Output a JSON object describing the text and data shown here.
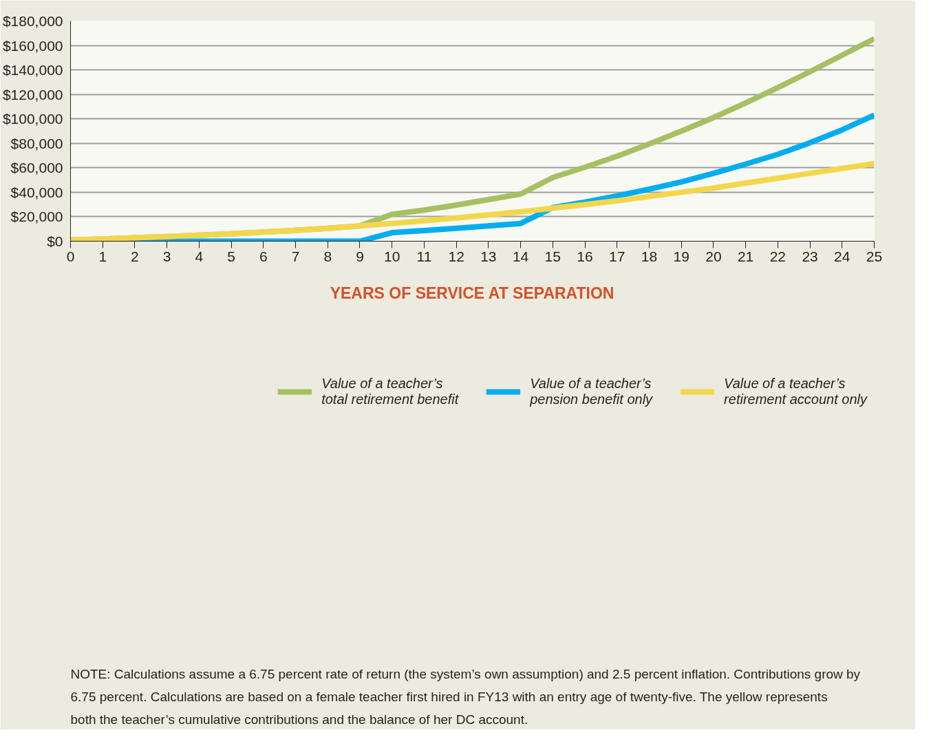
{
  "chart_data": {
    "type": "line",
    "x": [
      0,
      1,
      2,
      3,
      4,
      5,
      6,
      7,
      8,
      9,
      10,
      11,
      12,
      13,
      14,
      15,
      16,
      17,
      18,
      19,
      20,
      21,
      22,
      23,
      24,
      25
    ],
    "xlabel": "YEARS OF SERVICE AT SEPARATION",
    "xlim": [
      0,
      25
    ],
    "xticks": [
      0,
      1,
      2,
      3,
      4,
      5,
      6,
      7,
      8,
      9,
      10,
      11,
      12,
      13,
      14,
      15,
      16,
      17,
      18,
      19,
      20,
      21,
      22,
      23,
      24,
      25
    ],
    "ylim": [
      0,
      180000
    ],
    "yticks": [
      {
        "value": 0,
        "label": "$0"
      },
      {
        "value": 20000,
        "label": "$20,000"
      },
      {
        "value": 40000,
        "label": "$40,000"
      },
      {
        "value": 60000,
        "label": "$60,000"
      },
      {
        "value": 80000,
        "label": "$80,000"
      },
      {
        "value": 100000,
        "label": "$100,000"
      },
      {
        "value": 120000,
        "label": "$120,000"
      },
      {
        "value": 140000,
        "label": "$140,000"
      },
      {
        "value": 160000,
        "label": "$160,000"
      },
      {
        "value": 180000,
        "label": "$180,000"
      }
    ],
    "grid": "y",
    "legend": "bottom",
    "marker": "none",
    "line_style": "solid",
    "series": [
      {
        "name": "Value of a teacher’s total retirement benefit",
        "color": "#a6c063",
        "values": [
          1000,
          1800,
          2800,
          3800,
          4900,
          6100,
          7400,
          8800,
          10500,
          12500,
          22000,
          25500,
          29500,
          34000,
          38500,
          52000,
          60500,
          69500,
          79500,
          90000,
          101000,
          113000,
          125500,
          138500,
          152000,
          165500
        ]
      },
      {
        "name": "Value of a teacher’s pension benefit only",
        "color": "#00adef",
        "values": [
          0,
          0,
          0,
          0,
          0,
          0,
          0,
          0,
          0,
          0,
          7000,
          8700,
          10500,
          12500,
          14500,
          27500,
          32000,
          37000,
          42500,
          48500,
          55500,
          63000,
          71000,
          80500,
          91000,
          103000
        ]
      },
      {
        "name": "Value of a teacher’s retirement account only",
        "color": "#f2d74e",
        "values": [
          1000,
          1800,
          2800,
          3800,
          4900,
          6100,
          7400,
          8800,
          10500,
          12500,
          14500,
          16700,
          19000,
          21500,
          24000,
          27000,
          30000,
          33000,
          36500,
          40000,
          43500,
          47500,
          51500,
          55500,
          59500,
          63500
        ]
      }
    ],
    "annotations": [
      "NOTE: Calculations assume a 6.75 percent rate of return (the system’s own assumption) and 2.5 percent inflation. Contributions grow by 6.75 percent. Calculations are based on a female teacher first hired in FY13 with an entry age of twenty-five. The yellow represents both the teacher’s cumulative contributions and the balance of her DC account."
    ]
  }
}
